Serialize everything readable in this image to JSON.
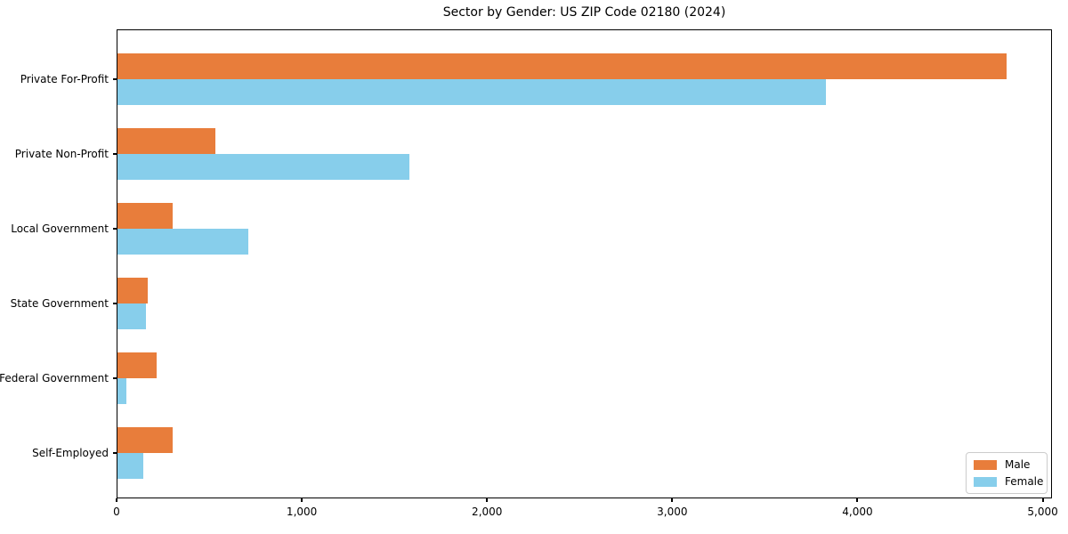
{
  "chart_data": {
    "type": "bar",
    "orientation": "horizontal",
    "title": "Sector by Gender: US ZIP Code 02180 (2024)",
    "categories": [
      "Private For-Profit",
      "Private Non-Profit",
      "Local Government",
      "State Government",
      "Federal Government",
      "Self-Employed"
    ],
    "series": [
      {
        "name": "Male",
        "color": "#e87d3b",
        "values": [
          4810,
          530,
          300,
          165,
          210,
          300
        ]
      },
      {
        "name": "Female",
        "color": "#87ceeb",
        "values": [
          3830,
          1580,
          710,
          155,
          50,
          140
        ]
      }
    ],
    "xlabel": "",
    "ylabel": "",
    "xlim": [
      0,
      5050
    ],
    "x_ticks": [
      0,
      1000,
      2000,
      3000,
      4000,
      5000
    ],
    "x_tick_labels": [
      "0",
      "1,000",
      "2,000",
      "3,000",
      "4,000",
      "5,000"
    ],
    "legend": {
      "entries": [
        "Male",
        "Female"
      ],
      "position": "lower right"
    },
    "grid": false,
    "background_color": "#ffffff",
    "axis_color": "#000000"
  }
}
